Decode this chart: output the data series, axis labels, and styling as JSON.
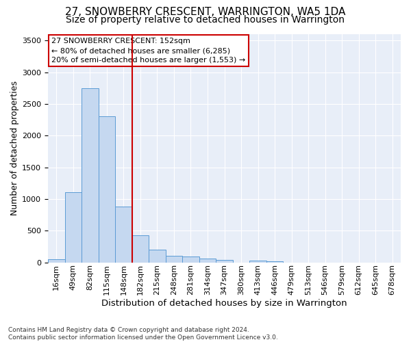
{
  "title1": "27, SNOWBERRY CRESCENT, WARRINGTON, WA5 1DA",
  "title2": "Size of property relative to detached houses in Warrington",
  "xlabel": "Distribution of detached houses by size in Warrington",
  "ylabel": "Number of detached properties",
  "footnote": "Contains HM Land Registry data © Crown copyright and database right 2024.\nContains public sector information licensed under the Open Government Licence v3.0.",
  "categories": [
    "16sqm",
    "49sqm",
    "82sqm",
    "115sqm",
    "148sqm",
    "182sqm",
    "215sqm",
    "248sqm",
    "281sqm",
    "314sqm",
    "347sqm",
    "380sqm",
    "413sqm",
    "446sqm",
    "479sqm",
    "513sqm",
    "546sqm",
    "579sqm",
    "612sqm",
    "645sqm",
    "678sqm"
  ],
  "values": [
    50,
    1110,
    2750,
    2300,
    880,
    430,
    195,
    100,
    90,
    55,
    40,
    0,
    30,
    20,
    0,
    0,
    0,
    0,
    0,
    0,
    0
  ],
  "bar_color": "#c5d8f0",
  "bar_edge_color": "#5b9bd5",
  "vline_x": 4.5,
  "annotation_title": "27 SNOWBERRY CRESCENT: 152sqm",
  "annotation_line1": "← 80% of detached houses are smaller (6,285)",
  "annotation_line2": "20% of semi-detached houses are larger (1,553) →",
  "annotation_box_color": "#ffffff",
  "annotation_box_edgecolor": "#cc0000",
  "vline_color": "#cc0000",
  "background_color": "#e8eef8",
  "ylim": [
    0,
    3600
  ],
  "title1_fontsize": 11,
  "title2_fontsize": 10,
  "xlabel_fontsize": 9.5,
  "ylabel_fontsize": 9,
  "annot_fontsize": 8,
  "tick_fontsize": 8,
  "footnote_fontsize": 6.5
}
